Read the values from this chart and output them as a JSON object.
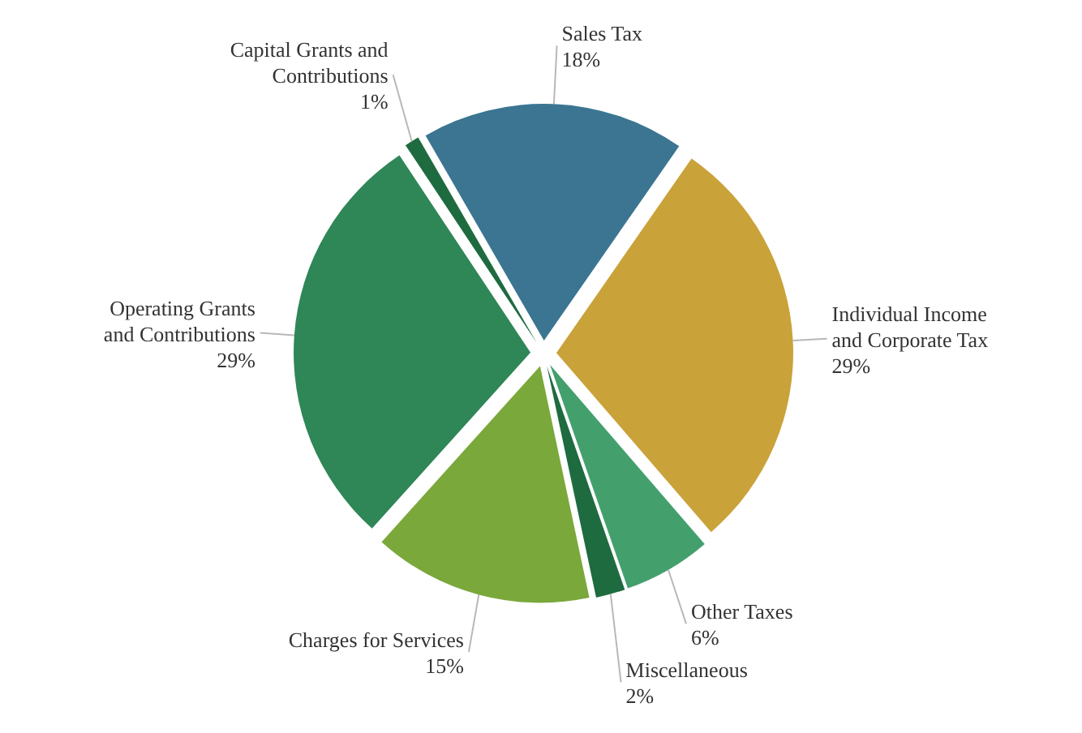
{
  "chart_data": {
    "type": "pie",
    "categories": [
      "Sales Tax",
      "Individual Income and Corporate Tax",
      "Other Taxes",
      "Miscellaneous",
      "Charges for Services",
      "Operating Grants and Contributions",
      "Capital Grants and Contributions"
    ],
    "values": [
      18,
      29,
      6,
      2,
      15,
      29,
      1
    ],
    "value_labels": [
      "18%",
      "29%",
      "6%",
      "2%",
      "15%",
      "29%",
      "1%"
    ],
    "colors": [
      "#3b7591",
      "#c9a23a",
      "#43a06d",
      "#1e6b3f",
      "#7aa83a",
      "#2f8656",
      "#1e6b3f"
    ]
  }
}
